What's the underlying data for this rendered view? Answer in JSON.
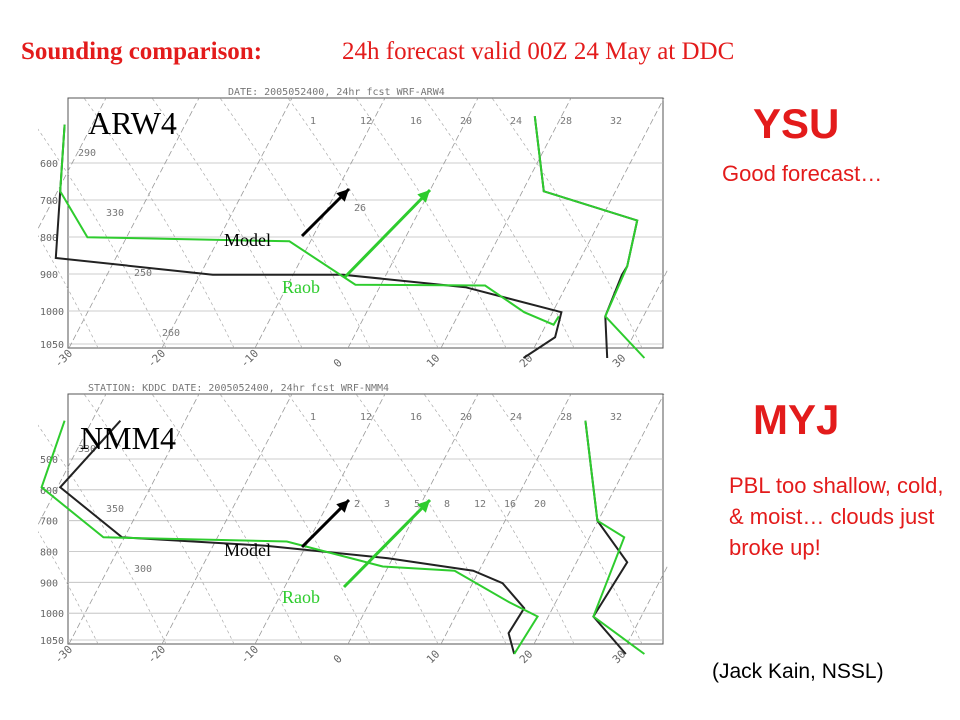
{
  "title": {
    "bold": "Sounding comparison:",
    "rest": "24h forecast valid 00Z 24 May at DDC"
  },
  "panels": [
    {
      "label": "ARW4",
      "scheme": "YSU",
      "note": "Good forecast…",
      "header": "DATE: 2005052400, 24hr fcst WRF-ARW4"
    },
    {
      "label": "NMM4",
      "scheme": "MYJ",
      "note": "PBL too shallow, cold, & moist… clouds just broke up!",
      "header": "STATION: KDDC DATE: 2005052400, 24hr fcst WRF-NMM4"
    }
  ],
  "annotations": {
    "model": "Model",
    "raob": "Raob"
  },
  "credit": "(Jack Kain, NSSL)",
  "colors": {
    "title": "#e31b1b",
    "raob": "#2ecc2e",
    "model": "#222222",
    "grid": "#9a9a9a"
  },
  "chart_data": [
    {
      "type": "line",
      "title": "ARW4",
      "yaxis_pressure_ticks": [
        "600",
        "700",
        "800",
        "900",
        "1000",
        "1050"
      ],
      "xaxis_temperature_ticks": [
        "-30",
        "-20",
        "-10",
        "0",
        "10",
        "20",
        "30"
      ],
      "mixing_ratio_labels": [
        "1",
        "12",
        "16",
        "20",
        "24",
        "28",
        "32"
      ],
      "isotherm_labels": [
        "26"
      ],
      "isentrope_labels": [
        "290",
        "330",
        "250",
        "260"
      ],
      "series": [
        {
          "name": "Model",
          "color": "#222222",
          "temperature": [
            [
              -44,
              20
            ],
            [
              -40,
              100
            ],
            [
              -36,
              180
            ],
            [
              -18,
              200
            ],
            [
              -4,
              200
            ],
            [
              10,
              215
            ],
            [
              22,
              245
            ],
            [
              23,
              275
            ],
            [
              21,
              300
            ]
          ],
          "dewpoint": [
            [
              6,
              10
            ],
            [
              12,
              100
            ],
            [
              24,
              135
            ],
            [
              26,
              190
            ],
            [
              26,
              200
            ],
            [
              27,
              250
            ],
            [
              30,
              300
            ]
          ]
        },
        {
          "name": "Raob",
          "color": "#2ecc2e",
          "temperature": [
            [
              -44,
              20
            ],
            [
              -40,
              100
            ],
            [
              -34,
              155
            ],
            [
              -12,
              160
            ],
            [
              -2,
              212
            ],
            [
              12,
              213
            ],
            [
              18,
              245
            ],
            [
              22,
              260
            ],
            [
              22,
              250
            ]
          ],
          "dewpoint": [
            [
              6,
              10
            ],
            [
              12,
              100
            ],
            [
              24,
              135
            ],
            [
              26,
              190
            ],
            [
              27,
              250
            ],
            [
              34,
              300
            ]
          ]
        }
      ]
    },
    {
      "type": "line",
      "title": "NMM4",
      "yaxis_pressure_ticks": [
        "500",
        "600",
        "700",
        "800",
        "900",
        "1000",
        "1050"
      ],
      "xaxis_temperature_ticks": [
        "-30",
        "-20",
        "-10",
        "0",
        "10",
        "20",
        "30"
      ],
      "mixing_ratio_labels": [
        "1",
        "12",
        "16",
        "20",
        "24",
        "28",
        "32"
      ],
      "isotherm_labels": [
        "2",
        "3",
        "5",
        "8",
        "12",
        "16",
        "20"
      ],
      "isentrope_labels": [
        "330",
        "350",
        "300"
      ],
      "series": [
        {
          "name": "Model",
          "color": "#222222",
          "temperature": [
            [
              -38,
              20
            ],
            [
              -40,
              100
            ],
            [
              -30,
              160
            ],
            [
              -14,
              170
            ],
            [
              0,
              185
            ],
            [
              10,
              200
            ],
            [
              14,
              215
            ],
            [
              18,
              245
            ],
            [
              18,
              275
            ],
            [
              20,
              300
            ]
          ],
          "dewpoint": [
            [
              12,
              20
            ],
            [
              20,
              140
            ],
            [
              26,
              190
            ],
            [
              26,
              255
            ],
            [
              32,
              300
            ]
          ]
        },
        {
          "name": "Raob",
          "color": "#2ecc2e",
          "temperature": [
            [
              -44,
              20
            ],
            [
              -42,
              100
            ],
            [
              -32,
              160
            ],
            [
              -12,
              165
            ],
            [
              0,
              195
            ],
            [
              8,
              200
            ],
            [
              16,
              238
            ],
            [
              20,
              255
            ],
            [
              20,
              300
            ]
          ],
          "dewpoint": [
            [
              12,
              20
            ],
            [
              20,
              140
            ],
            [
              24,
              160
            ],
            [
              26,
              255
            ],
            [
              34,
              300
            ]
          ]
        }
      ]
    }
  ]
}
